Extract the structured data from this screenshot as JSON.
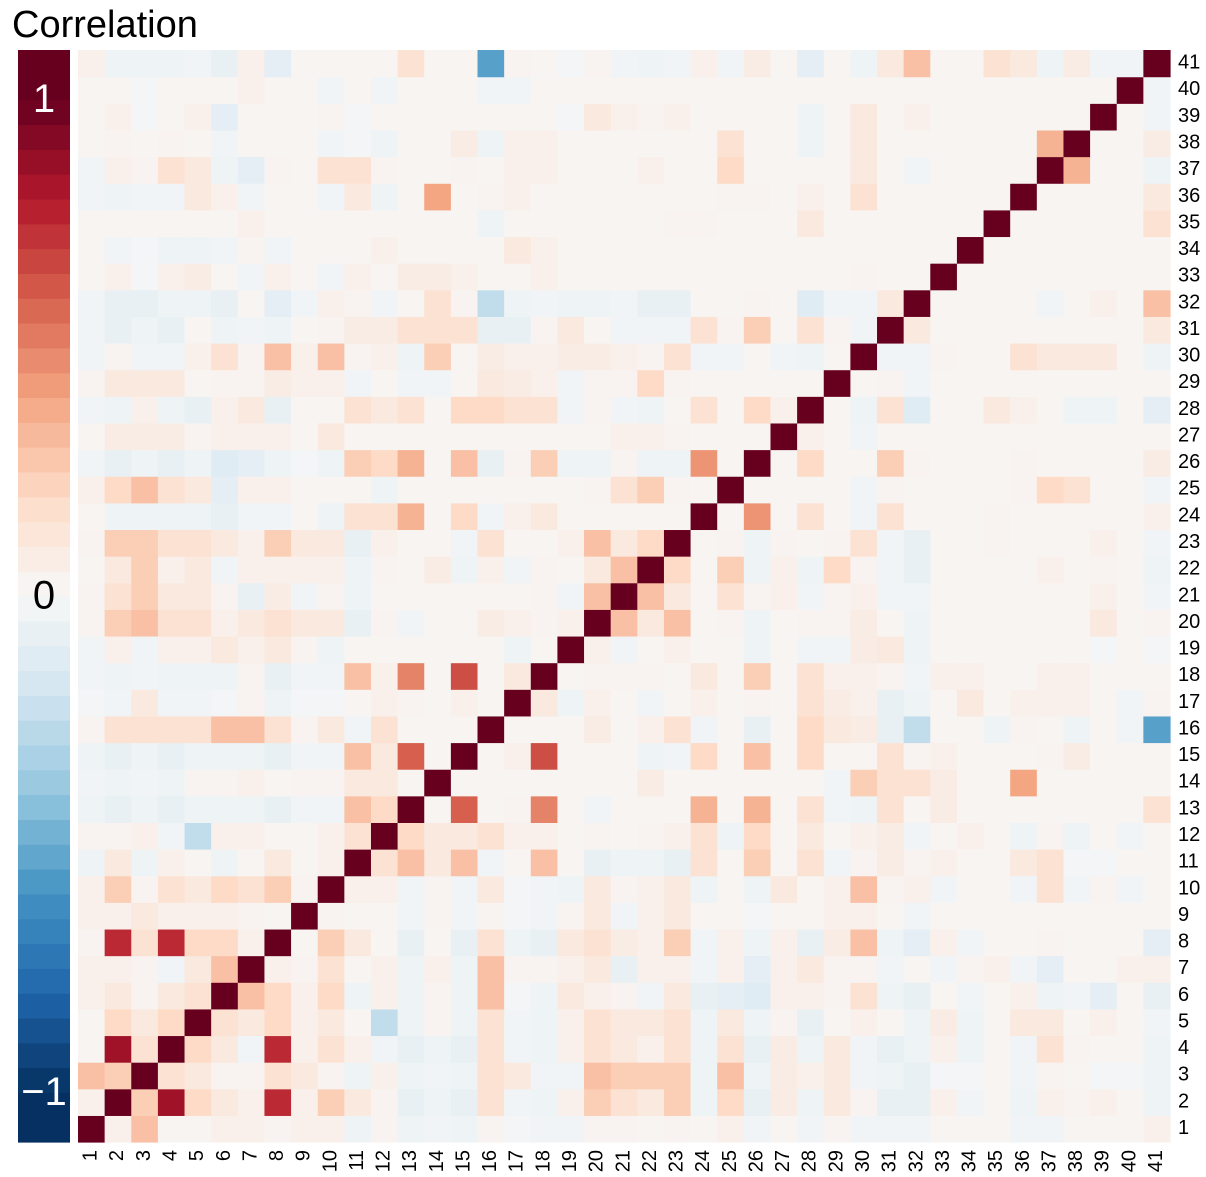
{
  "chart_data": {
    "type": "heatmap",
    "title": "Correlation",
    "labels": [
      "1",
      "2",
      "3",
      "4",
      "5",
      "6",
      "7",
      "8",
      "9",
      "10",
      "11",
      "12",
      "13",
      "14",
      "15",
      "16",
      "17",
      "18",
      "19",
      "20",
      "21",
      "22",
      "23",
      "24",
      "25",
      "26",
      "27",
      "28",
      "29",
      "30",
      "31",
      "32",
      "33",
      "34",
      "35",
      "36",
      "37",
      "38",
      "39",
      "40",
      "41"
    ],
    "colors": [
      "#053061",
      "#2166ac",
      "#4393c3",
      "#92c5de",
      "#d1e5f0",
      "#f7f7f7",
      "#fddbc7",
      "#f4a582",
      "#d6604d",
      "#b2182b",
      "#67001f"
    ],
    "clim": [
      -1.1,
      1.1
    ],
    "cticks": [
      1,
      0,
      {
        "value": -1,
        "label": "−1"
      }
    ],
    "matrix": [
      [
        1
      ],
      [
        0.05,
        1
      ],
      [
        0.3,
        0.25,
        1
      ],
      [
        0.02,
        0.85,
        0.15,
        1
      ],
      [
        0.02,
        0.2,
        0.1,
        0.2,
        1
      ],
      [
        0.05,
        0.1,
        0.03,
        0.1,
        0.15,
        1
      ],
      [
        0.05,
        0.05,
        0.03,
        -0.03,
        0.1,
        0.3,
        1
      ],
      [
        0.03,
        0.75,
        0.15,
        0.75,
        0.2,
        0.2,
        0.05,
        1
      ],
      [
        0.05,
        0.05,
        0.1,
        0.05,
        0.05,
        0.05,
        0.03,
        0.02,
        1
      ],
      [
        0.05,
        0.25,
        0.03,
        0.15,
        0.1,
        0.2,
        0.15,
        0.25,
        0.03,
        1
      ],
      [
        -0.05,
        0.1,
        -0.05,
        0.05,
        0.02,
        -0.05,
        0.02,
        0.1,
        0.02,
        0.05,
        1
      ],
      [
        0.03,
        0.03,
        0.05,
        -0.03,
        -0.25,
        0.05,
        0.05,
        0.02,
        0.02,
        0.05,
        0.15,
        1
      ],
      [
        -0.05,
        -0.08,
        -0.05,
        -0.08,
        -0.05,
        -0.05,
        -0.05,
        -0.08,
        -0.03,
        -0.03,
        0.3,
        0.2,
        1
      ],
      [
        -0.03,
        -0.05,
        -0.03,
        -0.05,
        0.03,
        0.03,
        0.05,
        0.02,
        0.03,
        0.03,
        0.1,
        0.1,
        0.02,
        1
      ],
      [
        -0.05,
        -0.08,
        -0.05,
        -0.08,
        -0.05,
        -0.05,
        -0.05,
        -0.08,
        -0.03,
        -0.03,
        0.3,
        0.1,
        0.6,
        0.02,
        1
      ],
      [
        0.03,
        0.15,
        0.15,
        0.15,
        0.15,
        0.3,
        0.3,
        0.15,
        0.03,
        0.1,
        -0.03,
        0.15,
        0.02,
        0.02,
        0.02,
        1
      ],
      [
        -0.02,
        -0.03,
        0.1,
        -0.03,
        -0.03,
        -0.02,
        0.03,
        -0.05,
        -0.02,
        -0.02,
        0.02,
        0.05,
        0.03,
        0.02,
        0.05,
        0.02,
        1
      ],
      [
        -0.03,
        -0.05,
        -0.03,
        -0.05,
        -0.05,
        -0.05,
        0.03,
        -0.08,
        -0.03,
        -0.03,
        0.3,
        0.05,
        0.5,
        0.02,
        0.65,
        0.02,
        0.1,
        1
      ],
      [
        -0.03,
        0.05,
        -0.03,
        0.05,
        0.05,
        0.1,
        0.05,
        0.1,
        0.03,
        -0.05,
        0.02,
        0.02,
        0.02,
        0.02,
        0.02,
        0.02,
        -0.05,
        0.02,
        1
      ],
      [
        0.03,
        0.25,
        0.3,
        0.15,
        0.15,
        0.05,
        0.1,
        0.15,
        0.1,
        0.1,
        -0.08,
        0.03,
        -0.03,
        0.02,
        0.02,
        0.08,
        0.05,
        0.03,
        0.05,
        1
      ],
      [
        0.03,
        0.15,
        0.25,
        0.1,
        0.1,
        0.03,
        -0.08,
        0.08,
        -0.03,
        0.03,
        -0.05,
        0.02,
        0.02,
        0.02,
        0.02,
        0.02,
        0.02,
        0.03,
        -0.03,
        0.3,
        1
      ],
      [
        0.02,
        0.1,
        0.25,
        0.05,
        0.1,
        -0.03,
        0.05,
        0.05,
        0.05,
        0.05,
        -0.05,
        0.03,
        0.02,
        0.08,
        -0.05,
        0.05,
        -0.03,
        0.03,
        0.02,
        0.1,
        0.3,
        1
      ],
      [
        0.03,
        0.25,
        0.25,
        0.15,
        0.15,
        0.1,
        0.05,
        0.25,
        0.1,
        0.1,
        -0.08,
        0.05,
        0.02,
        0.02,
        -0.03,
        0.15,
        0.02,
        0.02,
        0.05,
        0.3,
        0.1,
        0.2,
        1
      ],
      [
        0.02,
        -0.05,
        -0.05,
        -0.05,
        -0.05,
        -0.08,
        -0.03,
        -0.03,
        0.02,
        -0.05,
        0.15,
        0.15,
        0.35,
        0.02,
        0.2,
        -0.03,
        0.05,
        0.1,
        0.02,
        0.02,
        0.02,
        0.02,
        0.02,
        1
      ],
      [
        0.05,
        0.2,
        0.3,
        0.15,
        0.1,
        -0.1,
        0.05,
        0.05,
        0.02,
        0.02,
        0.02,
        -0.05,
        0.02,
        0.02,
        0.02,
        0.02,
        0.02,
        0.02,
        0.02,
        0.03,
        0.15,
        0.25,
        0.03,
        0.02,
        1
      ],
      [
        -0.03,
        -0.08,
        -0.05,
        -0.08,
        -0.05,
        -0.12,
        -0.1,
        -0.05,
        -0.02,
        -0.05,
        0.25,
        0.2,
        0.35,
        0.02,
        0.3,
        -0.08,
        0.03,
        0.25,
        -0.05,
        -0.05,
        0.03,
        -0.05,
        -0.05,
        0.45,
        0.02,
        1
      ],
      [
        0.02,
        0.08,
        0.08,
        0.08,
        0.03,
        0.05,
        0.05,
        0.05,
        0.02,
        0.1,
        0.02,
        0.02,
        0.02,
        0.02,
        0.02,
        0.02,
        0.02,
        0.02,
        0.02,
        0.02,
        0.05,
        0.05,
        0.03,
        0.02,
        0.02,
        0.02,
        1
      ],
      [
        -0.03,
        -0.05,
        0.05,
        -0.05,
        -0.08,
        0.05,
        0.1,
        -0.08,
        0.02,
        0.02,
        0.15,
        0.1,
        0.15,
        0.02,
        0.2,
        0.2,
        0.15,
        0.15,
        -0.03,
        0.03,
        -0.03,
        -0.05,
        0.02,
        0.15,
        0.02,
        0.2,
        0.05,
        1
      ],
      [
        0.03,
        0.1,
        0.1,
        0.1,
        0.02,
        0.03,
        0.03,
        0.08,
        0.05,
        0.05,
        -0.03,
        0.02,
        -0.03,
        -0.03,
        0.02,
        0.1,
        0.08,
        0.05,
        -0.03,
        0.03,
        0.03,
        0.2,
        0.03,
        0.02,
        0.02,
        0.02,
        0.02,
        0.02,
        1
      ],
      [
        -0.03,
        0.03,
        -0.03,
        -0.03,
        0.05,
        0.15,
        0.03,
        0.3,
        0.05,
        0.3,
        0.03,
        0.05,
        -0.05,
        0.25,
        0.02,
        0.08,
        0.05,
        0.05,
        0.08,
        0.08,
        0.05,
        0.03,
        0.15,
        -0.03,
        -0.03,
        0.02,
        -0.03,
        -0.05,
        0.02,
        1
      ],
      [
        -0.03,
        -0.08,
        -0.05,
        -0.08,
        0.02,
        -0.05,
        -0.03,
        -0.05,
        0.02,
        0.03,
        0.08,
        0.08,
        0.15,
        0.15,
        0.15,
        -0.08,
        -0.08,
        0.03,
        0.1,
        0.02,
        -0.03,
        -0.03,
        -0.03,
        0.15,
        0.03,
        0.25,
        0.02,
        0.15,
        0.03,
        -0.03,
        1
      ],
      [
        -0.03,
        -0.08,
        -0.08,
        -0.05,
        -0.05,
        -0.08,
        0.02,
        -0.1,
        -0.03,
        0.05,
        0.03,
        -0.03,
        0.02,
        0.15,
        0.03,
        -0.25,
        -0.05,
        -0.03,
        -0.05,
        -0.05,
        -0.03,
        -0.08,
        -0.08,
        0.02,
        0.02,
        0.03,
        0.02,
        -0.12,
        -0.03,
        -0.03,
        0.1,
        1
      ],
      [
        0.02,
        0.05,
        -0.02,
        0.05,
        0.08,
        0.02,
        -0.03,
        0.05,
        0.02,
        -0.03,
        0.05,
        0.02,
        0.08,
        0.08,
        0.05,
        0.02,
        0.02,
        0.05,
        0.02,
        0.02,
        0.02,
        0.02,
        0.02,
        0.02,
        0.02,
        0.02,
        0.02,
        0.02,
        0.02,
        0.03,
        0.02,
        0.02,
        1
      ],
      [
        0.02,
        -0.03,
        -0.02,
        -0.05,
        -0.05,
        -0.03,
        0.03,
        -0.03,
        0.02,
        0.02,
        0.02,
        0.05,
        0.02,
        0.02,
        0.02,
        0.02,
        0.1,
        0.05,
        0.02,
        0.02,
        0.02,
        0.02,
        0.02,
        0.02,
        0.02,
        0.02,
        0.02,
        0.02,
        0.02,
        0.02,
        0.02,
        0.02,
        0.02,
        1
      ],
      [
        0.02,
        0.02,
        0.02,
        0.02,
        0.02,
        0.02,
        0.05,
        0.02,
        0.02,
        0.02,
        0.02,
        0.02,
        0.02,
        0.02,
        0.02,
        -0.05,
        0.02,
        0.02,
        0.02,
        0.02,
        0.02,
        0.02,
        0.03,
        0.03,
        0.02,
        0.02,
        0.02,
        0.1,
        0.02,
        0.02,
        0.02,
        0.02,
        0.02,
        0.02,
        1
      ],
      [
        -0.03,
        -0.05,
        -0.03,
        -0.03,
        0.1,
        0.05,
        -0.03,
        0.02,
        0.02,
        -0.03,
        0.1,
        -0.05,
        0.02,
        0.4,
        0.02,
        0.03,
        0.05,
        0.02,
        0.02,
        0.02,
        0.02,
        0.02,
        0.02,
        0.02,
        0.03,
        0.03,
        0.02,
        0.05,
        0.02,
        0.15,
        0.02,
        0.02,
        0.02,
        0.02,
        0.02,
        1
      ],
      [
        -0.03,
        0.05,
        0.03,
        0.15,
        0.1,
        -0.05,
        -0.1,
        0.03,
        0.02,
        0.15,
        0.15,
        0.03,
        0.02,
        0.02,
        0.03,
        0.02,
        0.05,
        0.05,
        0.02,
        0.02,
        0.02,
        0.05,
        0.02,
        0.02,
        0.2,
        0.02,
        0.02,
        0.02,
        0.02,
        0.1,
        0.02,
        -0.03,
        0.02,
        0.02,
        0.02,
        0.02,
        1
      ],
      [
        0.02,
        0.03,
        0.02,
        0.03,
        0.02,
        -0.03,
        0.02,
        0.02,
        0.02,
        -0.03,
        -0.02,
        -0.05,
        0.02,
        0.02,
        0.08,
        -0.05,
        0.05,
        0.05,
        0.02,
        0.02,
        0.02,
        0.02,
        0.02,
        0.02,
        0.15,
        0.02,
        0.02,
        -0.05,
        0.02,
        0.1,
        0.02,
        0.02,
        0.02,
        0.02,
        0.02,
        0.02,
        0.35,
        1
      ],
      [
        0.02,
        0.05,
        -0.02,
        0.02,
        0.05,
        -0.1,
        0.02,
        0.02,
        0.02,
        0.03,
        -0.02,
        0.02,
        0.02,
        0.02,
        0.02,
        0.02,
        0.02,
        0.02,
        -0.02,
        0.1,
        0.05,
        0.03,
        0.05,
        0.02,
        0.02,
        0.02,
        0.02,
        -0.05,
        0.02,
        0.1,
        0.02,
        0.05,
        0.02,
        0.02,
        0.02,
        0.02,
        0.02,
        0.02,
        1
      ],
      [
        0.02,
        0.02,
        -0.02,
        0.02,
        0.02,
        0.02,
        0.05,
        0.02,
        0.02,
        -0.03,
        0.02,
        -0.03,
        0.02,
        0.02,
        0.02,
        -0.03,
        -0.03,
        0.02,
        0.02,
        0.02,
        0.02,
        0.02,
        0.02,
        0.02,
        0.02,
        0.02,
        0.02,
        0.02,
        0.02,
        0.02,
        0.02,
        0.02,
        0.02,
        0.02,
        0.02,
        0.02,
        0.02,
        0.02,
        0.02,
        1
      ],
      [
        0.05,
        -0.05,
        -0.05,
        -0.05,
        -0.03,
        -0.08,
        0.05,
        -0.1,
        0.02,
        0.02,
        0.02,
        0.02,
        0.15,
        0.02,
        0.02,
        -0.55,
        0.03,
        0.02,
        -0.02,
        0.03,
        -0.03,
        -0.05,
        -0.03,
        0.05,
        -0.03,
        0.08,
        0.02,
        -0.1,
        0.02,
        -0.05,
        0.1,
        0.3,
        0.02,
        0.02,
        0.15,
        0.1,
        -0.05,
        0.08,
        -0.03,
        -0.03,
        1
      ]
    ]
  }
}
